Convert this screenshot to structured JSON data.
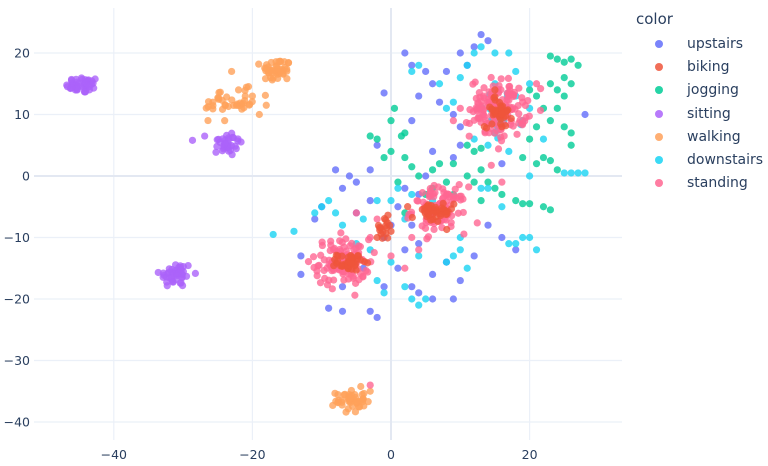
{
  "chart_data": {
    "type": "scatter",
    "title": "",
    "xlabel": "",
    "ylabel": "",
    "xlim": [
      -50.5,
      33
    ],
    "ylim": [
      -43.5,
      27
    ],
    "x_ticks": [
      -40,
      -20,
      0,
      20
    ],
    "y_ticks": [
      20,
      10,
      0,
      -10,
      -20,
      -30,
      -40
    ],
    "grid": true,
    "legend_title": "color",
    "legend_position": "right",
    "series": [
      {
        "name": "upstairs",
        "color": "#636efa",
        "clusters": [],
        "points": [
          [
            -1,
            13.5
          ],
          [
            -2,
            5
          ],
          [
            -3,
            1
          ],
          [
            -5,
            -1
          ],
          [
            -7,
            -2
          ],
          [
            -6,
            0
          ],
          [
            -8,
            1
          ],
          [
            -10,
            -5
          ],
          [
            -11,
            -7
          ],
          [
            -13,
            -13
          ],
          [
            -13,
            -16
          ],
          [
            -9,
            -21.5
          ],
          [
            -7,
            -22
          ],
          [
            -2,
            -23
          ],
          [
            -3,
            -22
          ],
          [
            -1,
            -18
          ],
          [
            1,
            -15
          ],
          [
            2,
            -12
          ],
          [
            3,
            -18
          ],
          [
            4,
            -19
          ],
          [
            6,
            -20
          ],
          [
            9,
            -20
          ],
          [
            12,
            -13
          ],
          [
            14,
            -8
          ],
          [
            16,
            -10
          ],
          [
            18,
            -12
          ],
          [
            6,
            -16
          ],
          [
            8,
            -14
          ],
          [
            10,
            -17
          ],
          [
            -1,
            -10
          ],
          [
            0,
            -8
          ],
          [
            1,
            -5
          ],
          [
            2,
            -2
          ],
          [
            4,
            -3
          ],
          [
            5,
            0
          ],
          [
            9,
            3
          ],
          [
            10,
            5
          ],
          [
            10,
            8
          ],
          [
            9,
            10
          ],
          [
            7,
            12
          ],
          [
            6,
            15
          ],
          [
            5,
            17
          ],
          [
            3,
            18
          ],
          [
            2,
            20
          ],
          [
            13,
            23
          ],
          [
            14,
            22
          ],
          [
            12,
            21
          ],
          [
            10,
            20
          ],
          [
            11,
            18
          ],
          [
            8,
            17
          ],
          [
            28,
            10
          ],
          [
            4,
            13
          ],
          [
            3,
            9
          ],
          [
            6,
            4
          ],
          [
            -3,
            -4
          ],
          [
            -5,
            -6
          ],
          [
            3,
            -8
          ],
          [
            4,
            -11
          ],
          [
            -4,
            -15
          ],
          [
            -7,
            -18
          ],
          [
            16,
            2
          ]
        ]
      },
      {
        "name": "biking",
        "color": "#ef553b",
        "clusters": [
          [
            -6,
            -14,
            1.2,
            0.9,
            40
          ],
          [
            6,
            -6,
            2,
            1.2,
            40
          ],
          [
            -1,
            -8.5,
            1,
            1.3,
            16
          ],
          [
            15.5,
            10.5,
            1.3,
            1.7,
            35
          ]
        ],
        "points": [
          [
            15,
            14
          ],
          [
            16,
            8
          ],
          [
            -2,
            -10
          ],
          [
            0,
            -9
          ]
        ]
      },
      {
        "name": "jogging",
        "color": "#00cc96",
        "clusters": [],
        "points": [
          [
            1.5,
            6.5
          ],
          [
            2,
            7
          ],
          [
            -3,
            6.5
          ],
          [
            -2,
            6
          ],
          [
            0,
            4
          ],
          [
            2,
            3
          ],
          [
            3,
            1.5
          ],
          [
            4,
            0
          ],
          [
            6,
            1
          ],
          [
            7,
            2
          ],
          [
            8,
            -1
          ],
          [
            9,
            -3
          ],
          [
            11,
            0
          ],
          [
            12,
            -1
          ],
          [
            13,
            1
          ],
          [
            14,
            -1
          ],
          [
            15,
            -2
          ],
          [
            16,
            -3
          ],
          [
            11,
            5
          ],
          [
            12,
            4
          ],
          [
            13,
            4.5
          ],
          [
            18,
            -4
          ],
          [
            19,
            -4.5
          ],
          [
            20,
            -4.5
          ],
          [
            22,
            -5
          ],
          [
            23,
            -5.5
          ],
          [
            19,
            3
          ],
          [
            21,
            2
          ],
          [
            22,
            3
          ],
          [
            23,
            2.5
          ],
          [
            24,
            1
          ],
          [
            26,
            5
          ],
          [
            26,
            7
          ],
          [
            25,
            8
          ],
          [
            23,
            9
          ],
          [
            21,
            8
          ],
          [
            20,
            6
          ],
          [
            23,
            15
          ],
          [
            24,
            14
          ],
          [
            25,
            16
          ],
          [
            26,
            15
          ],
          [
            25,
            13
          ],
          [
            24,
            11
          ],
          [
            27,
            18
          ],
          [
            26,
            19
          ],
          [
            23,
            19.5
          ],
          [
            24,
            19
          ],
          [
            25,
            18.5
          ],
          [
            20,
            14
          ],
          [
            21,
            13
          ],
          [
            22,
            11
          ],
          [
            5,
            -3
          ],
          [
            6,
            -2
          ],
          [
            2,
            -6
          ],
          [
            1,
            -1
          ],
          [
            -1,
            3
          ],
          [
            0,
            9
          ],
          [
            0.5,
            11
          ],
          [
            13,
            -4
          ],
          [
            9,
            2
          ]
        ]
      },
      {
        "name": "sitting",
        "color": "#ab63fa",
        "clusters": [
          [
            -44.5,
            14.8,
            1.6,
            0.9,
            45
          ],
          [
            -23.8,
            5.3,
            1.6,
            1.4,
            35
          ],
          [
            -31,
            -16,
            1.6,
            1.4,
            45
          ]
        ],
        "points": []
      },
      {
        "name": "walking",
        "color": "#ffa15a",
        "clusters": [
          [
            -16.5,
            17.2,
            1.4,
            1.3,
            45
          ],
          [
            -25,
            11.8,
            1.2,
            1.6,
            18
          ],
          [
            -21.5,
            12,
            1.4,
            1.4,
            18
          ],
          [
            -5.8,
            -36.5,
            1.4,
            1.3,
            45
          ]
        ],
        "points": [
          [
            -23,
            17
          ],
          [
            -22,
            14
          ],
          [
            -20,
            13
          ],
          [
            -19,
            10
          ],
          [
            -3,
            -35
          ],
          [
            -24,
            9
          ],
          [
            -18,
            11.5
          ]
        ]
      },
      {
        "name": "downstairs",
        "color": "#19d3f3",
        "clusters": [
          [
            15,
            10,
            1.8,
            3,
            30
          ]
        ],
        "points": [
          [
            12,
            20
          ],
          [
            13,
            21
          ],
          [
            15,
            20
          ],
          [
            17,
            20
          ],
          [
            11,
            18
          ],
          [
            15,
            15
          ],
          [
            18,
            17
          ],
          [
            20,
            15
          ],
          [
            18,
            13
          ],
          [
            9,
            12
          ],
          [
            10,
            16
          ],
          [
            19,
            9
          ],
          [
            20,
            11
          ],
          [
            22,
            6
          ],
          [
            17,
            4
          ],
          [
            14,
            5
          ],
          [
            12,
            6
          ],
          [
            20,
            0
          ],
          [
            14,
            -2
          ],
          [
            16,
            -5
          ],
          [
            19,
            -10
          ],
          [
            20,
            -10
          ],
          [
            18,
            -11
          ],
          [
            17,
            -11
          ],
          [
            10,
            -12
          ],
          [
            9,
            -13
          ],
          [
            11,
            -15
          ],
          [
            8,
            -14
          ],
          [
            4,
            -13
          ],
          [
            3,
            -20
          ],
          [
            4,
            -21
          ],
          [
            5,
            -20
          ],
          [
            2,
            -18
          ],
          [
            -2,
            -17
          ],
          [
            -1,
            -19
          ],
          [
            0,
            -14
          ],
          [
            -3,
            -12
          ],
          [
            -5,
            -11
          ],
          [
            -9,
            -4
          ],
          [
            -10,
            -5
          ],
          [
            -11,
            -6
          ],
          [
            -8,
            -6
          ],
          [
            -7,
            -8
          ],
          [
            -4,
            -7
          ],
          [
            -2,
            -4
          ],
          [
            0,
            -4
          ],
          [
            1,
            -2
          ],
          [
            3,
            -3
          ],
          [
            6,
            -4
          ],
          [
            10,
            -10
          ],
          [
            13,
            -2
          ],
          [
            21,
            -12
          ],
          [
            -17,
            -9.5
          ],
          [
            -14,
            -9
          ],
          [
            26,
            0.5
          ],
          [
            27,
            0.5
          ],
          [
            28,
            0.5
          ],
          [
            25,
            0.5
          ],
          [
            3,
            17
          ],
          [
            4,
            18
          ],
          [
            7,
            15
          ],
          [
            8,
            11
          ],
          [
            2,
            -7
          ]
        ]
      },
      {
        "name": "standing",
        "color": "#ff6692",
        "clusters": [
          [
            -7,
            -14,
            2.6,
            2.5,
            110
          ],
          [
            7,
            -5.5,
            2.6,
            2.5,
            100
          ],
          [
            15.5,
            11,
            2.7,
            3.2,
            140
          ]
        ],
        "points": [
          [
            -3,
            -34
          ],
          [
            -5,
            -6
          ],
          [
            -2,
            -7
          ],
          [
            0,
            -13
          ],
          [
            3,
            -10
          ],
          [
            4,
            -12
          ],
          [
            19,
            12
          ],
          [
            21,
            15
          ],
          [
            9,
            9
          ],
          [
            10,
            11
          ],
          [
            -3,
            -10
          ],
          [
            16,
            -1
          ],
          [
            2,
            -15
          ]
        ]
      }
    ]
  }
}
